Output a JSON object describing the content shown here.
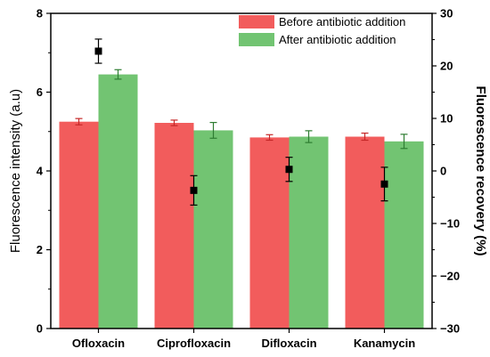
{
  "chart_data": {
    "type": "bar",
    "categories": [
      "Ofloxacin",
      "Ciprofloxacin",
      "Difloxacin",
      "Kanamycin"
    ],
    "series": [
      {
        "name": "Before antibiotic addition",
        "color": "#f25c5c",
        "axis": "left",
        "values": [
          5.25,
          5.22,
          4.85,
          4.87
        ],
        "errors": [
          0.08,
          0.07,
          0.07,
          0.09
        ]
      },
      {
        "name": "After antibiotic addition",
        "color": "#72c472",
        "axis": "left",
        "values": [
          6.45,
          5.03,
          4.87,
          4.75
        ],
        "errors": [
          0.12,
          0.2,
          0.15,
          0.18
        ]
      },
      {
        "name": "",
        "type": "scatter",
        "color": "#000000",
        "axis": "right",
        "values": [
          22.8,
          -3.7,
          0.3,
          -2.5
        ],
        "errors": [
          2.3,
          2.8,
          2.3,
          3.2
        ]
      }
    ],
    "xlabel": "",
    "ylabel": "Fluorescence intensity (a.u)",
    "y2label": "Fluorescence recovery (%)",
    "ylim": [
      0,
      8
    ],
    "y2lim": [
      -30,
      30
    ],
    "yticks": [
      "0",
      "2",
      "4",
      "6",
      "8"
    ],
    "y2ticks": [
      "-30",
      "-20",
      "-10",
      "0",
      "10",
      "20",
      "30"
    ],
    "legend_position": "top-right",
    "grid": false
  }
}
